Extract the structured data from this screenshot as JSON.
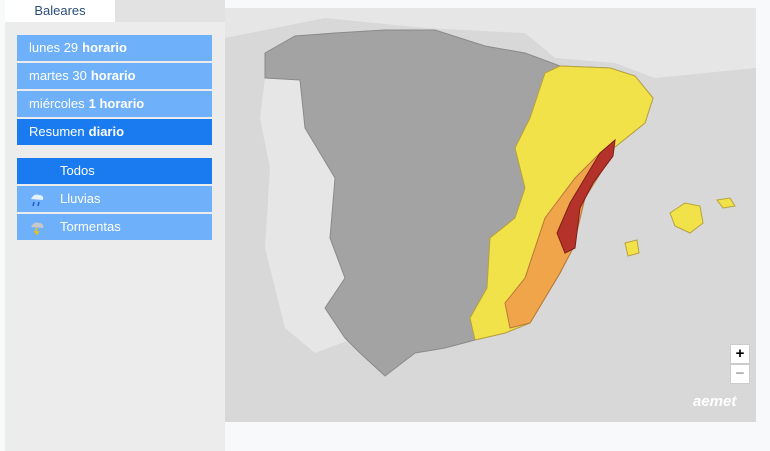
{
  "tabs": {
    "active": "Baleares"
  },
  "days": [
    {
      "text": "lunes 29",
      "bold": "horario"
    },
    {
      "text": "martes 30",
      "bold": "horario"
    },
    {
      "text": "miércoles",
      "bold": "1 horario"
    }
  ],
  "summary": {
    "text": "Resumen",
    "bold": "diario"
  },
  "filters": [
    "Todos",
    "Lluvias",
    "Tormentas"
  ],
  "map": {
    "zoom_in": "+",
    "zoom_out": "−",
    "logo": "aemet"
  }
}
